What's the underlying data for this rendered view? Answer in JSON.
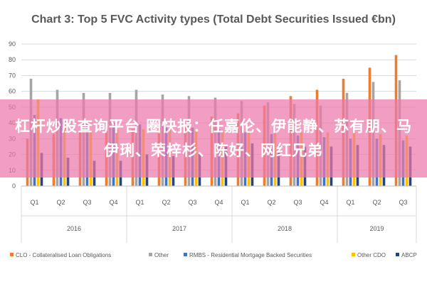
{
  "chart_data": {
    "type": "bar",
    "title": "Chart 3: Top 5 FVC Activity types (Total Debt Securities Issued €bn)",
    "ylim": [
      0,
      90
    ],
    "yticks": [
      0,
      10,
      20,
      30,
      40,
      50,
      60,
      70,
      80,
      90
    ],
    "grid": true,
    "legend_position": "bottom",
    "categories": [
      "Q1",
      "Q2",
      "Q3",
      "Q4",
      "Q1",
      "Q2",
      "Q3",
      "Q4",
      "Q1",
      "Q2",
      "Q3",
      "Q4",
      "Q1",
      "Q2",
      "Q3"
    ],
    "years": [
      {
        "label": "2016",
        "quarters": 4
      },
      {
        "label": "2017",
        "quarters": 4
      },
      {
        "label": "2018",
        "quarters": 4
      },
      {
        "label": "2019",
        "quarters": 3
      }
    ],
    "series": [
      {
        "name": "CLO - Collateralised Loan Obligations",
        "color": "#ed7d31",
        "values": [
          30,
          33,
          34,
          35,
          36,
          38,
          40,
          44,
          46,
          51,
          57,
          61,
          68,
          75,
          83
        ]
      },
      {
        "name": "Other",
        "color": "#a5a5a5",
        "values": [
          68,
          61,
          59,
          59,
          61,
          58,
          57,
          56,
          54,
          53,
          52,
          51,
          59,
          66,
          67
        ]
      },
      {
        "name": "RMBS - Residential Mortgage Backed Securities",
        "color": "#4472c4",
        "values": [
          45,
          43,
          40,
          40,
          39,
          37,
          37,
          36,
          34,
          33,
          32,
          31,
          30,
          30,
          29
        ]
      },
      {
        "name": "Other CDO",
        "color": "#ffc000",
        "values": [
          55,
          41,
          35,
          36,
          36,
          36,
          36,
          35,
          35,
          35,
          34,
          34,
          34,
          33,
          32
        ]
      },
      {
        "name": "ABCP",
        "color": "#264478",
        "values": [
          21,
          18,
          16,
          16,
          20,
          19,
          21,
          25,
          27,
          26,
          25,
          25,
          26,
          26,
          25
        ]
      }
    ]
  },
  "overlay": {
    "banner_text": "杠杆炒股查询平台 圈快报：任嘉伦、伊能静、苏有朋、马伊琍、荣梓杉、陈好、网红兄弟"
  }
}
